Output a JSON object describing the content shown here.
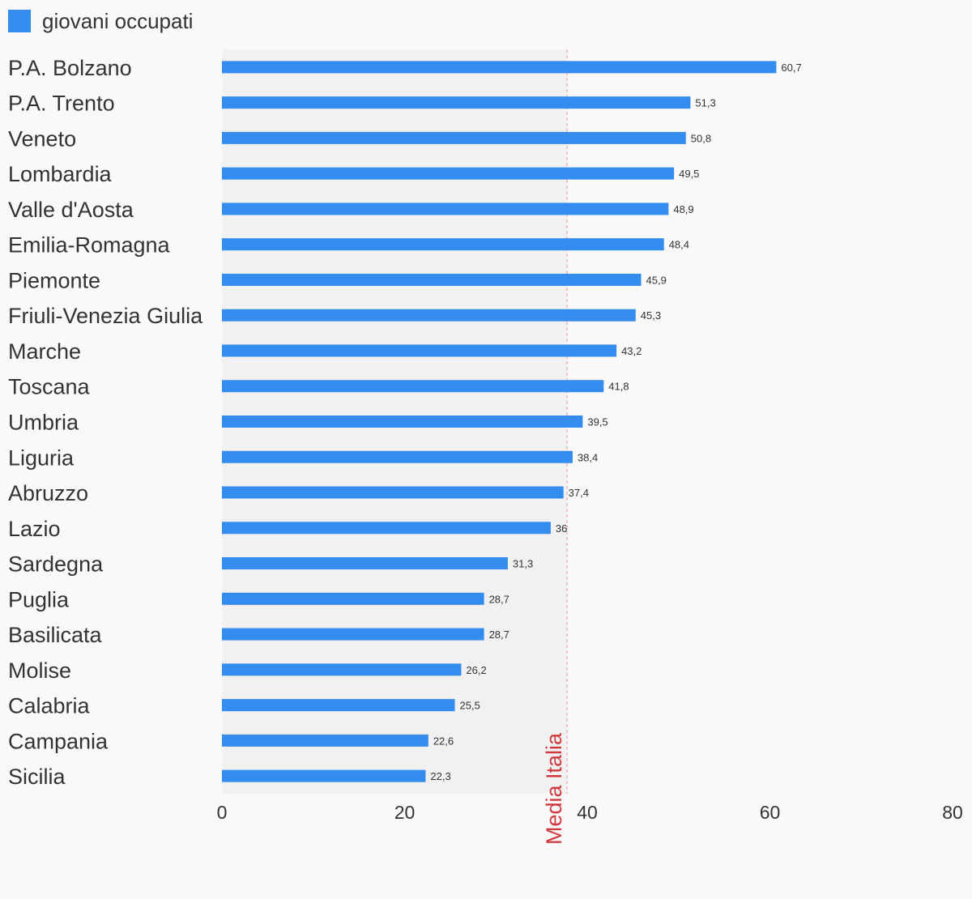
{
  "legend": {
    "label": "giovani occupati",
    "color": "#348cee"
  },
  "chart_data": {
    "type": "bar",
    "orientation": "horizontal",
    "title": "",
    "xlabel": "",
    "ylabel": "",
    "xlim": [
      0,
      80
    ],
    "xticks": [
      "0",
      "20",
      "40",
      "60",
      "80"
    ],
    "grid": false,
    "legend_position": "top-left",
    "bar_color": "#348cee",
    "shaded_region_color": "#f1f1f1",
    "categories": [
      "P.A. Bolzano",
      "P.A. Trento",
      "Veneto",
      "Lombardia",
      "Valle d'Aosta",
      "Emilia-Romagna",
      "Piemonte",
      "Friuli-Venezia Giulia",
      "Marche",
      "Toscana",
      "Umbria",
      "Liguria",
      "Abruzzo",
      "Lazio",
      "Sardegna",
      "Puglia",
      "Basilicata",
      "Molise",
      "Calabria",
      "Campania",
      "Sicilia"
    ],
    "series": [
      {
        "name": "giovani occupati",
        "values": [
          60.7,
          51.3,
          50.8,
          49.5,
          48.9,
          48.4,
          45.9,
          45.3,
          43.2,
          41.8,
          39.5,
          38.4,
          37.4,
          36,
          31.3,
          28.7,
          28.7,
          26.2,
          25.5,
          22.6,
          22.3
        ],
        "value_labels": [
          "60,7",
          "51,3",
          "50,8",
          "49,5",
          "48,9",
          "48,4",
          "45,9",
          "45,3",
          "43,2",
          "41,8",
          "39,5",
          "38,4",
          "37,4",
          "36",
          "31,3",
          "28,7",
          "28,7",
          "26,2",
          "25,5",
          "22,6",
          "22,3"
        ]
      }
    ],
    "reference_line": {
      "label": "Media Italia",
      "value": 37.8,
      "color": "#d0383e"
    }
  }
}
